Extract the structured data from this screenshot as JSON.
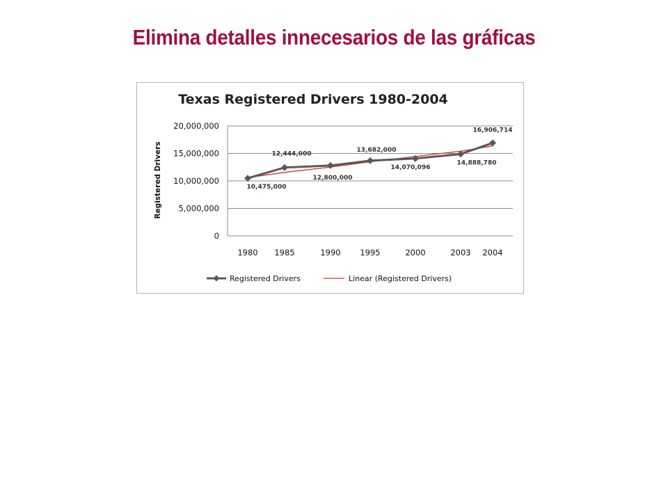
{
  "slide": {
    "title": "Elimina detalles innecesarios de las gráficas"
  },
  "chart_data": {
    "type": "line",
    "title": "Texas Registered Drivers 1980-2004",
    "xlabel": "",
    "ylabel": "Registered Drivers",
    "categories": [
      "1980",
      "1985",
      "1990",
      "1995",
      "2000",
      "2003",
      "2004"
    ],
    "ylim": [
      0,
      20000000
    ],
    "yticks": [
      "0",
      "5,000,000",
      "10,000,000",
      "15,000,000",
      "20,000,000"
    ],
    "grid": "horizontal",
    "legend_position": "bottom",
    "series": [
      {
        "name": "Registered Drivers",
        "values": [
          10475000,
          12444000,
          12800000,
          13682000,
          14070096,
          14888780,
          16906714
        ],
        "data_labels": [
          "10,475,000",
          "12,444,000",
          "12,800,000",
          "13,682,000",
          "14,070,096",
          "14,888,780",
          "16,906,714"
        ],
        "color": "#595959",
        "marker": "diamond"
      },
      {
        "name": "Linear (Registered Drivers)",
        "values": [
          10600000,
          11562000,
          12524000,
          13486000,
          14448000,
          15410000,
          16372000
        ],
        "color": "#d9312f",
        "marker": "none"
      }
    ]
  }
}
